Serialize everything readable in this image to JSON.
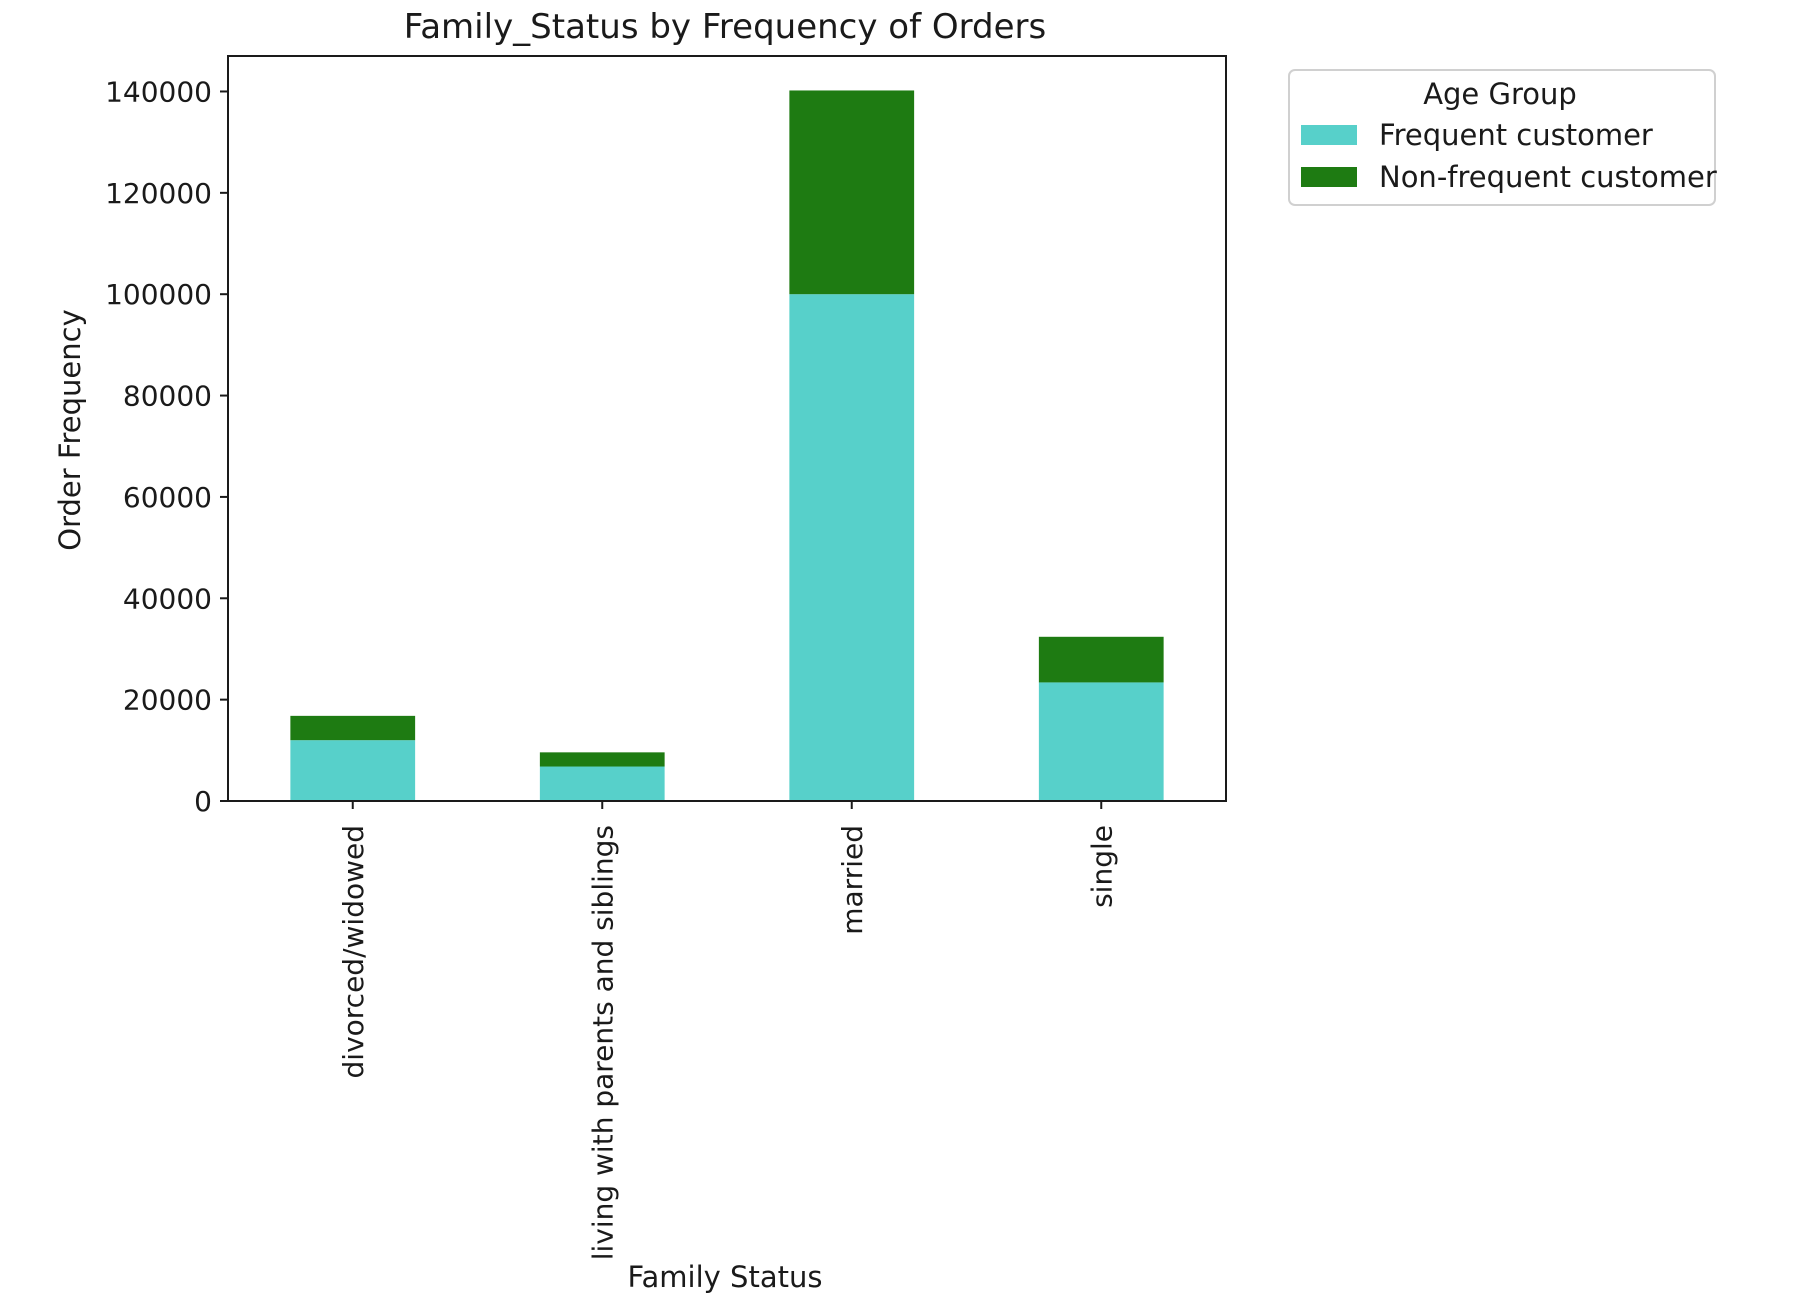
{
  "chart_data": {
    "type": "bar",
    "stacked": true,
    "title": "Family_Status by Frequency of Orders",
    "xlabel": "Family Status",
    "ylabel": "Order Frequency",
    "categories": [
      "divorced/widowed",
      "living with parents and siblings",
      "married",
      "single"
    ],
    "series": [
      {
        "name": "Frequent customer",
        "color": "#57d0ca",
        "values": [
          12000,
          6800,
          100000,
          23400
        ]
      },
      {
        "name": "Non-frequent customer",
        "color": "#1e7b12",
        "values": [
          4800,
          2800,
          40200,
          9000
        ]
      }
    ],
    "ylim": [
      0,
      147000
    ],
    "yticks": [
      0,
      20000,
      40000,
      60000,
      80000,
      100000,
      120000,
      140000
    ],
    "grid": false,
    "legend": {
      "title": "Age Group",
      "placement": "outside-top-right"
    }
  }
}
